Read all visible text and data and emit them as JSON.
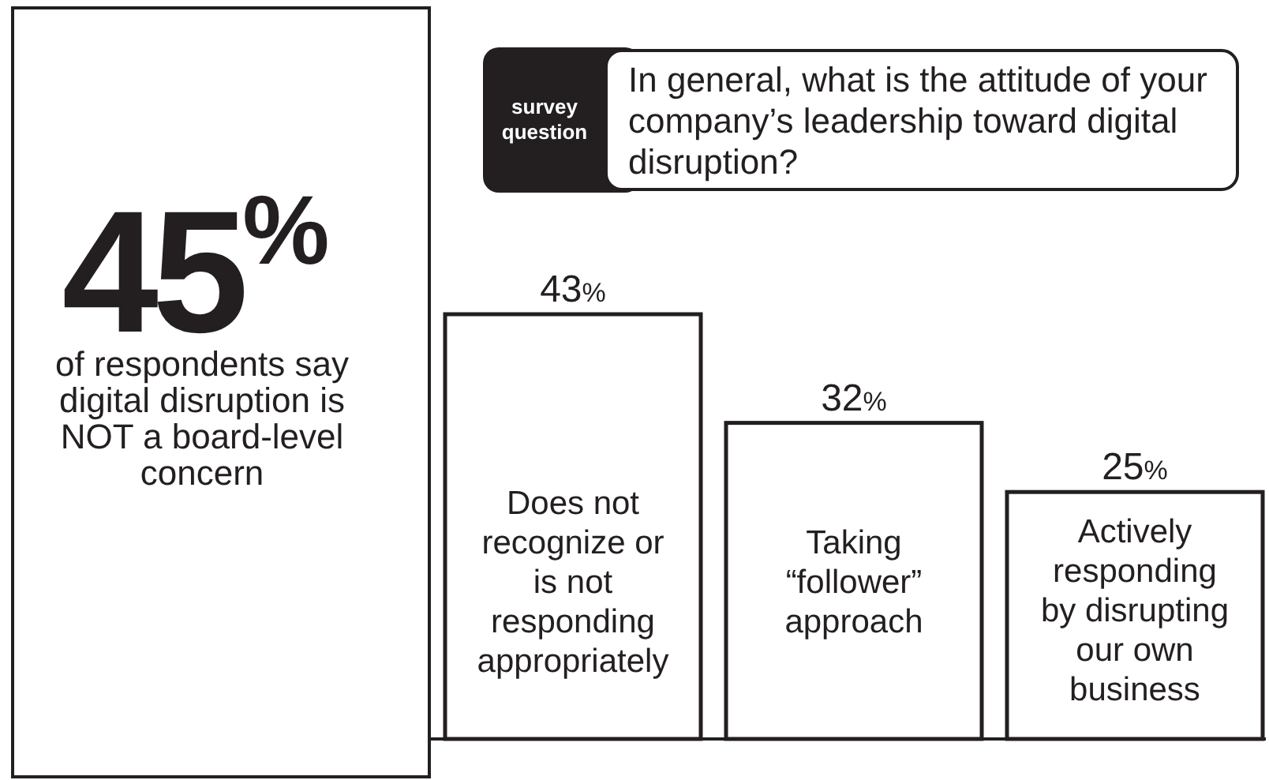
{
  "chart_data": {
    "type": "bar",
    "title": "In general, what is the attitude of your company’s leadership toward digital disruption?",
    "categories": [
      "Does not recognize or is not responding appropriately",
      "Taking “follower” approach",
      "Actively responding by disrupting our own business"
    ],
    "values": [
      43,
      32,
      25
    ],
    "value_labels": [
      "43%",
      "32%",
      "25%"
    ],
    "color": "#ffffff",
    "annotations": [
      "survey question",
      "45$^{%}$",
      "of respondents say digital disruption is NOT a board-level concern"
    ]
  }
}
